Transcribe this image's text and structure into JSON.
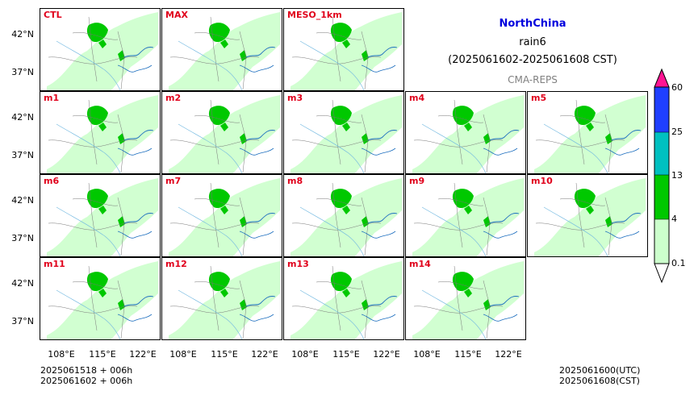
{
  "title": {
    "region": "NorthChina",
    "variable": "rain6",
    "period": "(2025061602-2025061608 CST)",
    "model": "CMA-REPS"
  },
  "panels": [
    {
      "label": "CTL"
    },
    {
      "label": "MAX"
    },
    {
      "label": "MESO_1km"
    },
    {
      "label": "m1"
    },
    {
      "label": "m2"
    },
    {
      "label": "m3"
    },
    {
      "label": "m4"
    },
    {
      "label": "m5"
    },
    {
      "label": "m6"
    },
    {
      "label": "m7"
    },
    {
      "label": "m8"
    },
    {
      "label": "m9"
    },
    {
      "label": "m10"
    },
    {
      "label": "m11"
    },
    {
      "label": "m12"
    },
    {
      "label": "m13"
    },
    {
      "label": "m14"
    }
  ],
  "axes": {
    "y_ticks": [
      "42°N",
      "37°N"
    ],
    "x_ticks": [
      "108°E",
      "115°E",
      "122°E"
    ]
  },
  "colorbar": {
    "ticks": [
      "0.1",
      "4",
      "13",
      "25",
      "60"
    ],
    "colors": [
      "#ccffcc",
      "#00c800",
      "#00c0c0",
      "#1f3fff",
      "#ff1493"
    ]
  },
  "footer": {
    "init_utc_line": "2025061518  +  006h",
    "init_cst_line": "2025061602  +  006h",
    "valid_utc": "2025061600(UTC)",
    "valid_cst": "2025061608(CST)"
  }
}
